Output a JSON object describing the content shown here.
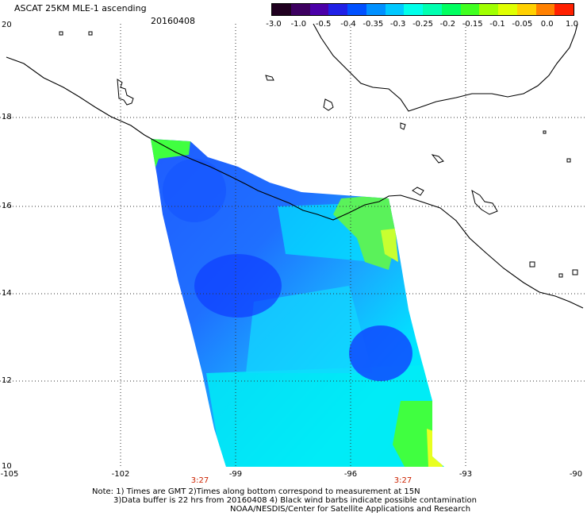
{
  "header": {
    "title": "ASCAT 25KM MLE-1 ascending",
    "date": "20160408"
  },
  "colorbar": {
    "colors": [
      "#200020",
      "#3d0060",
      "#4b00a8",
      "#2020e6",
      "#0050ff",
      "#0090ff",
      "#00c8ff",
      "#00ffea",
      "#00ffb0",
      "#00ff60",
      "#40ff20",
      "#a0ff00",
      "#e0ff00",
      "#ffd000",
      "#ff8000",
      "#ff2000"
    ],
    "labels": [
      "-3.0",
      "-1.0",
      "-0.5",
      "-0.4",
      "-0.35",
      "-0.3",
      "-0.25",
      "-0.2",
      "-0.15",
      "-0.1",
      "-0.05",
      "0.0",
      "1.0"
    ]
  },
  "axes": {
    "lat_labels": [
      "20",
      "18",
      "16",
      "14",
      "12",
      "10"
    ],
    "lon_labels": [
      "-105",
      "-102",
      "-99",
      "-96",
      "-93",
      "-90"
    ],
    "time_labels": [
      "3:27",
      "3:27"
    ]
  },
  "notes": {
    "line1": "Note: 1) Times are GMT 2)Times along bottom correspond to measurement at 15N",
    "line2": "3)Data buffer is 22 hrs from 20160408 4) Black wind barbs indicate possible contamination",
    "line3": "NOAA/NESDIS/Center for Satellite Applications and Research"
  }
}
